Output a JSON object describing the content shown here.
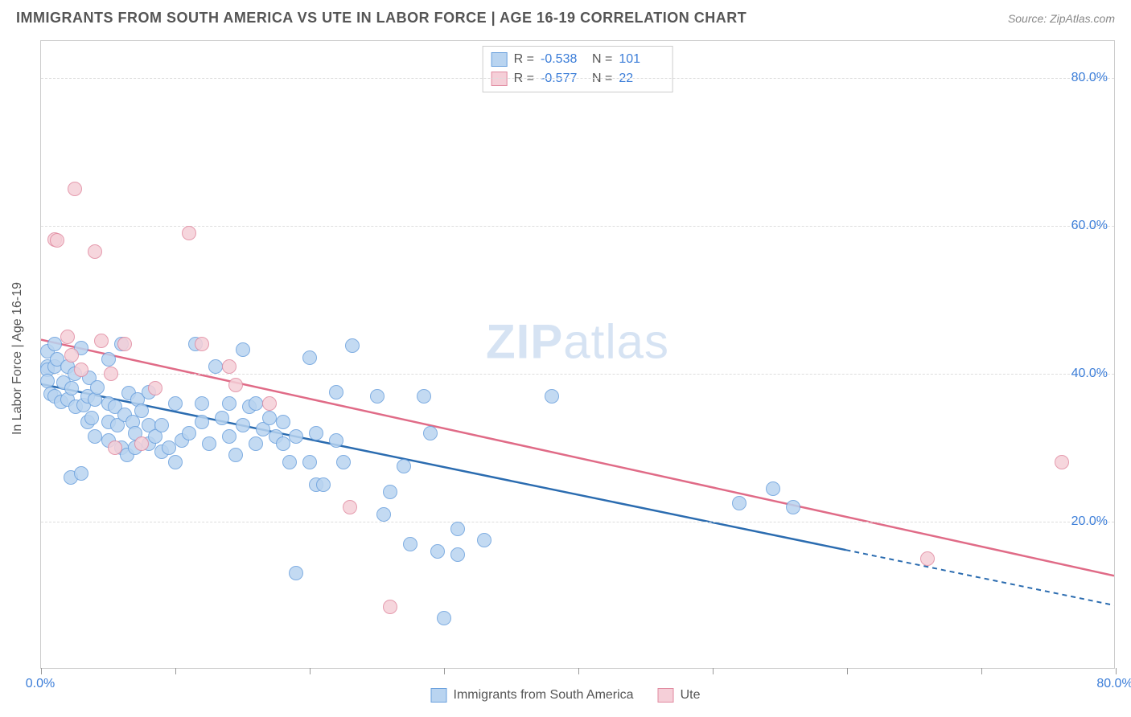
{
  "title": "IMMIGRANTS FROM SOUTH AMERICA VS UTE IN LABOR FORCE | AGE 16-19 CORRELATION CHART",
  "source": "Source: ZipAtlas.com",
  "ylabel": "In Labor Force | Age 16-19",
  "watermark_bold": "ZIP",
  "watermark_rest": "atlas",
  "chart": {
    "type": "scatter",
    "background_color": "#ffffff",
    "grid_color": "#dddddd",
    "axis_color": "#cccccc",
    "label_color": "#555555",
    "tick_color": "#3b7dd8",
    "xlim": [
      0,
      80
    ],
    "ylim": [
      0,
      85
    ],
    "xticks": [
      0,
      10,
      20,
      30,
      40,
      50,
      60,
      70,
      80
    ],
    "xtick_labels": {
      "0": "0.0%",
      "80": "80.0%"
    },
    "yticks": [
      20,
      40,
      60,
      80
    ],
    "ytick_labels": {
      "20": "20.0%",
      "40": "40.0%",
      "60": "60.0%",
      "80": "80.0%"
    },
    "tick_fontsize": 16,
    "label_fontsize": 16,
    "title_fontsize": 18,
    "dot_radius": 9
  },
  "series": [
    {
      "name": "Immigrants from South America",
      "fill": "#b9d4f0",
      "stroke": "#6aa0dd",
      "line_color": "#2b6cb0",
      "R": "-0.538",
      "N": "101",
      "trend": {
        "x1": 0,
        "y1": 38.5,
        "x2": 60,
        "y2": 16,
        "dash_from_x": 60,
        "x3": 80,
        "y3": 8.5
      },
      "points": [
        [
          0.5,
          43
        ],
        [
          0.5,
          41
        ],
        [
          0.5,
          40.5
        ],
        [
          0.5,
          39
        ],
        [
          0.7,
          37.3
        ],
        [
          1,
          44
        ],
        [
          1,
          41
        ],
        [
          1,
          37
        ],
        [
          1.2,
          42
        ],
        [
          1.5,
          36.2
        ],
        [
          1.7,
          38.8
        ],
        [
          2,
          41
        ],
        [
          2,
          36.5
        ],
        [
          2.2,
          26
        ],
        [
          2.3,
          38
        ],
        [
          2.5,
          40
        ],
        [
          2.6,
          35.5
        ],
        [
          3,
          43.5
        ],
        [
          3,
          26.5
        ],
        [
          3.2,
          35.8
        ],
        [
          3.5,
          37
        ],
        [
          3.5,
          33.5
        ],
        [
          3.6,
          39.5
        ],
        [
          3.8,
          34
        ],
        [
          4,
          36.5
        ],
        [
          4,
          31.5
        ],
        [
          4.2,
          38.2
        ],
        [
          5,
          42
        ],
        [
          5,
          36
        ],
        [
          5,
          33.5
        ],
        [
          5,
          31
        ],
        [
          5.5,
          35.5
        ],
        [
          5.7,
          33
        ],
        [
          6,
          44
        ],
        [
          6,
          30
        ],
        [
          6.2,
          34.5
        ],
        [
          6.4,
          29
        ],
        [
          6.5,
          37.4
        ],
        [
          6.8,
          33.5
        ],
        [
          7,
          32
        ],
        [
          7,
          30
        ],
        [
          7.2,
          36.5
        ],
        [
          7.5,
          35
        ],
        [
          8,
          37.5
        ],
        [
          8,
          33
        ],
        [
          8,
          30.5
        ],
        [
          8.5,
          31.5
        ],
        [
          9,
          33
        ],
        [
          9,
          29.5
        ],
        [
          9.5,
          30
        ],
        [
          10,
          36
        ],
        [
          10,
          28
        ],
        [
          10.5,
          31
        ],
        [
          11,
          32
        ],
        [
          11.5,
          44
        ],
        [
          12,
          36
        ],
        [
          12,
          33.5
        ],
        [
          12.5,
          30.5
        ],
        [
          13,
          41
        ],
        [
          13.5,
          34
        ],
        [
          14,
          36
        ],
        [
          14,
          31.5
        ],
        [
          14.5,
          29
        ],
        [
          15,
          43.3
        ],
        [
          15,
          33
        ],
        [
          15.5,
          35.5
        ],
        [
          16,
          36
        ],
        [
          16,
          30.5
        ],
        [
          16.5,
          32.5
        ],
        [
          17,
          34
        ],
        [
          17.5,
          31.5
        ],
        [
          18,
          33.5
        ],
        [
          18,
          30.5
        ],
        [
          18.5,
          28
        ],
        [
          19,
          31.5
        ],
        [
          19,
          13
        ],
        [
          20,
          42.2
        ],
        [
          20,
          28
        ],
        [
          20.5,
          32
        ],
        [
          20.5,
          25
        ],
        [
          21,
          25
        ],
        [
          22,
          37.5
        ],
        [
          22,
          31
        ],
        [
          22.5,
          28
        ],
        [
          23.2,
          43.8
        ],
        [
          25,
          37
        ],
        [
          25.5,
          21
        ],
        [
          26,
          24
        ],
        [
          27,
          27.5
        ],
        [
          27.5,
          17
        ],
        [
          28.5,
          37
        ],
        [
          29,
          32
        ],
        [
          29.5,
          16
        ],
        [
          30,
          7
        ],
        [
          31,
          19
        ],
        [
          31,
          15.5
        ],
        [
          33,
          17.5
        ],
        [
          38,
          37
        ],
        [
          52,
          22.5
        ],
        [
          54.5,
          24.5
        ],
        [
          56,
          22
        ]
      ]
    },
    {
      "name": "Ute",
      "fill": "#f5cfd8",
      "stroke": "#e18aa0",
      "line_color": "#e06b87",
      "R": "-0.577",
      "N": "22",
      "trend": {
        "x1": 0,
        "y1": 44.5,
        "x2": 80,
        "y2": 12.5
      },
      "points": [
        [
          1,
          58.2
        ],
        [
          1.2,
          58
        ],
        [
          2,
          45
        ],
        [
          2.3,
          42.5
        ],
        [
          2.5,
          65
        ],
        [
          3,
          40.5
        ],
        [
          4,
          56.5
        ],
        [
          4.5,
          44.5
        ],
        [
          5.2,
          40
        ],
        [
          5.5,
          30
        ],
        [
          6.2,
          44
        ],
        [
          7.5,
          30.5
        ],
        [
          8.5,
          38
        ],
        [
          11,
          59
        ],
        [
          12,
          44
        ],
        [
          14,
          41
        ],
        [
          14.5,
          38.5
        ],
        [
          17,
          36
        ],
        [
          23,
          22
        ],
        [
          26,
          8.5
        ],
        [
          66,
          15
        ],
        [
          76,
          28
        ]
      ]
    }
  ],
  "stats_legend": {
    "r_label": "R =",
    "n_label": "N ="
  },
  "bottom_legend": {
    "items": [
      "Immigrants from South America",
      "Ute"
    ]
  }
}
